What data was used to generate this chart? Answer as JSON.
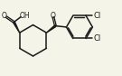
{
  "bg_color": "#f5f4e8",
  "bond_color": "#1a1a1a",
  "text_color": "#1a1a1a",
  "bond_lw": 1.1,
  "font_size": 5.5,
  "figsize": [
    1.35,
    0.84
  ],
  "dpi": 100,
  "xlim": [
    0,
    9.5
  ],
  "ylim": [
    0,
    6.0
  ]
}
